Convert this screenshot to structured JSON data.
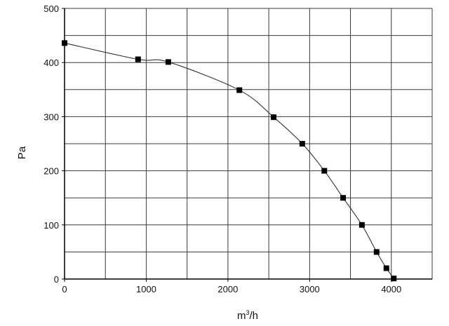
{
  "chart_data": {
    "type": "line",
    "xlabel_base": "m",
    "xlabel_sup": "3",
    "xlabel_suffix": "/h",
    "ylabel": "Pa",
    "xlim": [
      0,
      4500
    ],
    "ylim": [
      0,
      500
    ],
    "x_ticks": [
      0,
      1000,
      2000,
      3000,
      4000
    ],
    "y_ticks": [
      0,
      100,
      200,
      300,
      400,
      500
    ],
    "x_grid_step": 500,
    "y_grid_step": 50,
    "grid": true,
    "series": [
      {
        "x": [
          0,
          900,
          1270,
          2140,
          2560,
          2910,
          3180,
          3410,
          3640,
          3820,
          3940,
          4030
        ],
        "y": [
          436,
          406,
          401,
          349,
          299,
          250,
          200,
          150,
          100,
          50,
          20,
          1
        ]
      }
    ]
  }
}
